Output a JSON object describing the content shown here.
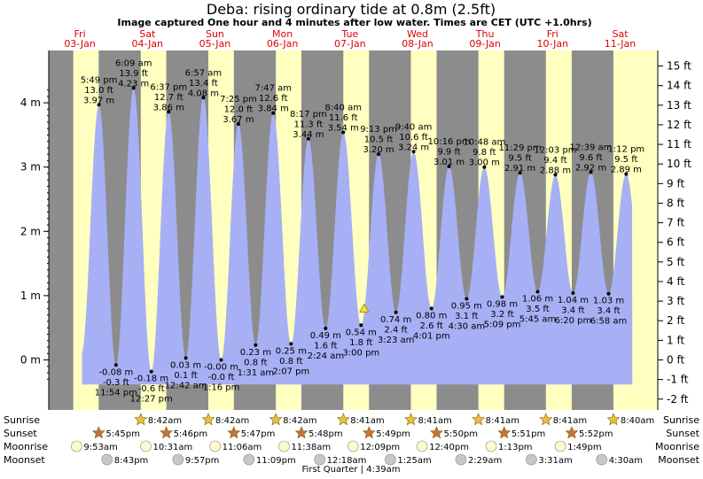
{
  "header": {
    "title": "Deba: rising  ordinary tide at 0.8m (2.5ft)",
    "subtitle": "Image captured One hour and 4 minutes after low water. Times are CET (UTC +1.0hrs)"
  },
  "days": [
    {
      "weekday": "Fri",
      "date": "03-Jan"
    },
    {
      "weekday": "Sat",
      "date": "04-Jan"
    },
    {
      "weekday": "Sun",
      "date": "05-Jan"
    },
    {
      "weekday": "Mon",
      "date": "06-Jan"
    },
    {
      "weekday": "Tue",
      "date": "07-Jan"
    },
    {
      "weekday": "Wed",
      "date": "08-Jan"
    },
    {
      "weekday": "Thu",
      "date": "09-Jan"
    },
    {
      "weekday": "Fri",
      "date": "10-Jan"
    },
    {
      "weekday": "Sat",
      "date": "11-Jan"
    }
  ],
  "rows": {
    "sunrise_label": "Sunrise",
    "sunset_label": "Sunset",
    "moonrise_label": "Moonrise",
    "moonset_label": "Moonset",
    "sunrise": [
      "8:42am",
      "8:42am",
      "8:42am",
      "8:41am",
      "8:41am",
      "8:41am",
      "8:41am",
      "8:40am"
    ],
    "sunset": [
      "5:45pm",
      "5:46pm",
      "5:47pm",
      "5:48pm",
      "5:49pm",
      "5:50pm",
      "5:51pm",
      "5:52pm"
    ],
    "moonrise": [
      "9:53am",
      "10:31am",
      "11:06am",
      "11:38am",
      "12:09pm",
      "12:40pm",
      "1:13pm",
      "1:49pm"
    ],
    "moonset": [
      "8:43pm",
      "9:57pm",
      "11:09pm",
      "12:18am",
      "1:25am",
      "2:29am",
      "3:31am",
      "4:30am"
    ],
    "moon_phase": "First Quarter | 4:39am"
  },
  "colors": {
    "night": "#8c8c8c",
    "day": "#ffffc0",
    "water": "#a7b0f5",
    "date_text": "#e00000",
    "marker": "#f5e030"
  },
  "chart_data": {
    "type": "area",
    "title": "Deba: rising  ordinary tide at 0.8m (2.5ft)",
    "y_left_label": "m",
    "y_right_label": "ft",
    "left_ticks": [
      0,
      1,
      2,
      3,
      4
    ],
    "right_ticks": [
      -2,
      -1,
      0,
      1,
      2,
      3,
      4,
      5,
      6,
      7,
      8,
      9,
      10,
      11,
      12,
      13,
      14,
      15
    ],
    "ylim_m": [
      -0.3,
      4.3
    ],
    "current_height_m": 0.8,
    "extremes": [
      {
        "day": 0,
        "time": "5:49 pm",
        "t": 17.82,
        "type": "high",
        "ft": "13.0 ft",
        "m": 3.97,
        "m_label": "3.97 m"
      },
      {
        "day": 0,
        "time": "11:54 pm",
        "t": 23.9,
        "type": "low",
        "ft": "-0.3 ft",
        "m": -0.08,
        "m_label": "-0.08 m"
      },
      {
        "day": 1,
        "time": "6:09 am",
        "t": 30.15,
        "type": "high",
        "ft": "13.9 ft",
        "m": 4.23,
        "m_label": "4.23 m"
      },
      {
        "day": 1,
        "time": "12:27 pm",
        "t": 36.45,
        "type": "low",
        "ft": "-0.6 ft",
        "m": -0.18,
        "m_label": "-0.18 m"
      },
      {
        "day": 1,
        "time": "6:37 pm",
        "t": 42.62,
        "type": "high",
        "ft": "12.7 ft",
        "m": 3.86,
        "m_label": "3.86 m"
      },
      {
        "day": 2,
        "time": "12:42 am",
        "t": 48.7,
        "type": "low",
        "ft": "0.1 ft",
        "m": 0.03,
        "m_label": "0.03 m"
      },
      {
        "day": 2,
        "time": "6:57 am",
        "t": 54.95,
        "type": "high",
        "ft": "13.4 ft",
        "m": 4.08,
        "m_label": "4.08 m"
      },
      {
        "day": 2,
        "time": "1:16 pm",
        "t": 61.27,
        "type": "low",
        "ft": "-0.0 ft",
        "m": -0.0,
        "m_label": "-0.00 m"
      },
      {
        "day": 2,
        "time": "7:25 pm",
        "t": 67.42,
        "type": "high",
        "ft": "12.0 ft",
        "m": 3.67,
        "m_label": "3.67 m"
      },
      {
        "day": 3,
        "time": "1:31 am",
        "t": 73.52,
        "type": "low",
        "ft": "0.8 ft",
        "m": 0.23,
        "m_label": "0.23 m"
      },
      {
        "day": 3,
        "time": "7:47 am",
        "t": 79.78,
        "type": "high",
        "ft": "12.6 ft",
        "m": 3.84,
        "m_label": "3.84 m"
      },
      {
        "day": 3,
        "time": "2:07 pm",
        "t": 86.12,
        "type": "low",
        "ft": "0.8 ft",
        "m": 0.25,
        "m_label": "0.25 m"
      },
      {
        "day": 3,
        "time": "8:17 pm",
        "t": 92.28,
        "type": "high",
        "ft": "11.3 ft",
        "m": 3.44,
        "m_label": "3.44 m"
      },
      {
        "day": 4,
        "time": "2:24 am",
        "t": 98.4,
        "type": "low",
        "ft": "1.6 ft",
        "m": 0.49,
        "m_label": "0.49 m"
      },
      {
        "day": 4,
        "time": "8:40 am",
        "t": 104.67,
        "type": "high",
        "ft": "11.6 ft",
        "m": 3.54,
        "m_label": "3.54 m"
      },
      {
        "day": 4,
        "time": "3:00 pm",
        "t": 111.0,
        "type": "low",
        "ft": "1.8 ft",
        "m": 0.54,
        "m_label": "0.54 m"
      },
      {
        "day": 4,
        "time": "9:13 pm",
        "t": 117.22,
        "type": "high",
        "ft": "10.5 ft",
        "m": 3.2,
        "m_label": "3.20 m"
      },
      {
        "day": 5,
        "time": "3:23 am",
        "t": 123.38,
        "type": "low",
        "ft": "2.4 ft",
        "m": 0.74,
        "m_label": "0.74 m"
      },
      {
        "day": 5,
        "time": "9:40 am",
        "t": 129.67,
        "type": "high",
        "ft": "10.6 ft",
        "m": 3.24,
        "m_label": "3.24 m"
      },
      {
        "day": 5,
        "time": "4:01 pm",
        "t": 136.02,
        "type": "low",
        "ft": "2.6 ft",
        "m": 0.8,
        "m_label": "0.80 m"
      },
      {
        "day": 5,
        "time": "10:16 pm",
        "t": 142.27,
        "type": "high",
        "ft": "9.9 ft",
        "m": 3.01,
        "m_label": "3.01 m"
      },
      {
        "day": 6,
        "time": "4:30 am",
        "t": 148.5,
        "type": "low",
        "ft": "3.1 ft",
        "m": 0.95,
        "m_label": "0.95 m"
      },
      {
        "day": 6,
        "time": "10:48 am",
        "t": 154.8,
        "type": "high",
        "ft": "9.8 ft",
        "m": 3.0,
        "m_label": "3.00 m"
      },
      {
        "day": 6,
        "time": "5:09 pm",
        "t": 161.15,
        "type": "low",
        "ft": "3.2 ft",
        "m": 0.98,
        "m_label": "0.98 m"
      },
      {
        "day": 6,
        "time": "11:29 pm",
        "t": 167.48,
        "type": "high",
        "ft": "9.5 ft",
        "m": 2.91,
        "m_label": "2.91 m"
      },
      {
        "day": 7,
        "time": "5:45 am",
        "t": 173.75,
        "type": "low",
        "ft": "3.5 ft",
        "m": 1.06,
        "m_label": "1.06 m"
      },
      {
        "day": 7,
        "time": "12:03 pm",
        "t": 180.05,
        "type": "high",
        "ft": "9.4 ft",
        "m": 2.88,
        "m_label": "2.88 m"
      },
      {
        "day": 7,
        "time": "6:20 pm",
        "t": 186.33,
        "type": "low",
        "ft": "3.4 ft",
        "m": 1.04,
        "m_label": "1.04 m"
      },
      {
        "day": 8,
        "time": "12:39 am",
        "t": 192.65,
        "type": "high",
        "ft": "9.6 ft",
        "m": 2.92,
        "m_label": "2.92 m"
      },
      {
        "day": 8,
        "time": "6:58 am",
        "t": 198.97,
        "type": "low",
        "ft": "3.4 ft",
        "m": 1.03,
        "m_label": "1.03 m"
      },
      {
        "day": 8,
        "time": "1:12 pm",
        "t": 205.2,
        "type": "high",
        "ft": "9.5 ft",
        "m": 2.89,
        "m_label": "2.89 m"
      }
    ]
  }
}
